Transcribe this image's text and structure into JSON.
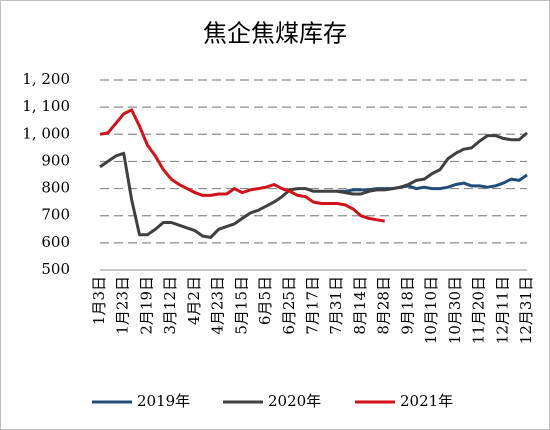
{
  "chart_data": {
    "type": "line",
    "title": "焦企焦煤库存",
    "categories": [
      "1月3日",
      null,
      null,
      "1月23日",
      null,
      null,
      "2月19日",
      null,
      null,
      "3月12日",
      null,
      null,
      "4月2日",
      null,
      null,
      "4月23日",
      null,
      null,
      "5月15日",
      null,
      null,
      "6月5日",
      null,
      null,
      "6月25日",
      null,
      null,
      "7月17日",
      null,
      null,
      "7月31日",
      null,
      null,
      "8月14日",
      null,
      null,
      "8月28日",
      null,
      null,
      "9月18日",
      null,
      null,
      "10月10日",
      null,
      null,
      "10月30日",
      null,
      null,
      "11月20日",
      null,
      null,
      "12月11日",
      null,
      null,
      "12月31日"
    ],
    "series": [
      {
        "name": "2019年",
        "color": "#1f4e79",
        "values": [
          null,
          null,
          null,
          null,
          null,
          null,
          null,
          null,
          null,
          null,
          null,
          null,
          null,
          null,
          null,
          null,
          null,
          null,
          null,
          null,
          null,
          null,
          null,
          null,
          null,
          null,
          null,
          null,
          null,
          null,
          790,
          790,
          795,
          795,
          795,
          800,
          800,
          800,
          805,
          810,
          800,
          805,
          800,
          800,
          805,
          815,
          820,
          810,
          810,
          805,
          810,
          820,
          835,
          830,
          850
        ]
      },
      {
        "name": "2020年",
        "color": "#404040",
        "values": [
          880,
          900,
          920,
          930,
          760,
          630,
          630,
          650,
          675,
          675,
          665,
          655,
          645,
          625,
          620,
          650,
          660,
          670,
          690,
          710,
          720,
          735,
          750,
          770,
          795,
          800,
          800,
          790,
          790,
          790,
          790,
          785,
          780,
          780,
          790,
          795,
          795,
          800,
          805,
          815,
          830,
          835,
          855,
          870,
          910,
          930,
          945,
          950,
          975,
          995,
          995,
          985,
          980,
          980,
          1005
        ]
      },
      {
        "name": "2021年",
        "color": "#d0121b",
        "values": [
          1000,
          1005,
          1040,
          1075,
          1090,
          1030,
          960,
          920,
          870,
          835,
          815,
          800,
          785,
          775,
          775,
          780,
          780,
          800,
          785,
          795,
          800,
          805,
          815,
          800,
          790,
          775,
          770,
          750,
          745,
          745,
          745,
          740,
          725,
          700,
          690,
          685,
          680,
          null,
          null,
          null,
          null,
          null,
          null,
          null,
          null,
          null,
          null,
          null,
          null,
          null,
          null,
          null,
          null,
          null,
          null
        ]
      }
    ],
    "ylim": [
      500,
      1200
    ],
    "yticks": [
      500,
      600,
      700,
      800,
      900,
      {
        "value": 1000,
        "label": "1, 000"
      },
      {
        "value": 1100,
        "label": "1, 100"
      },
      {
        "value": 1200,
        "label": "1, 200"
      }
    ],
    "grid": true,
    "legend": "bottom"
  }
}
